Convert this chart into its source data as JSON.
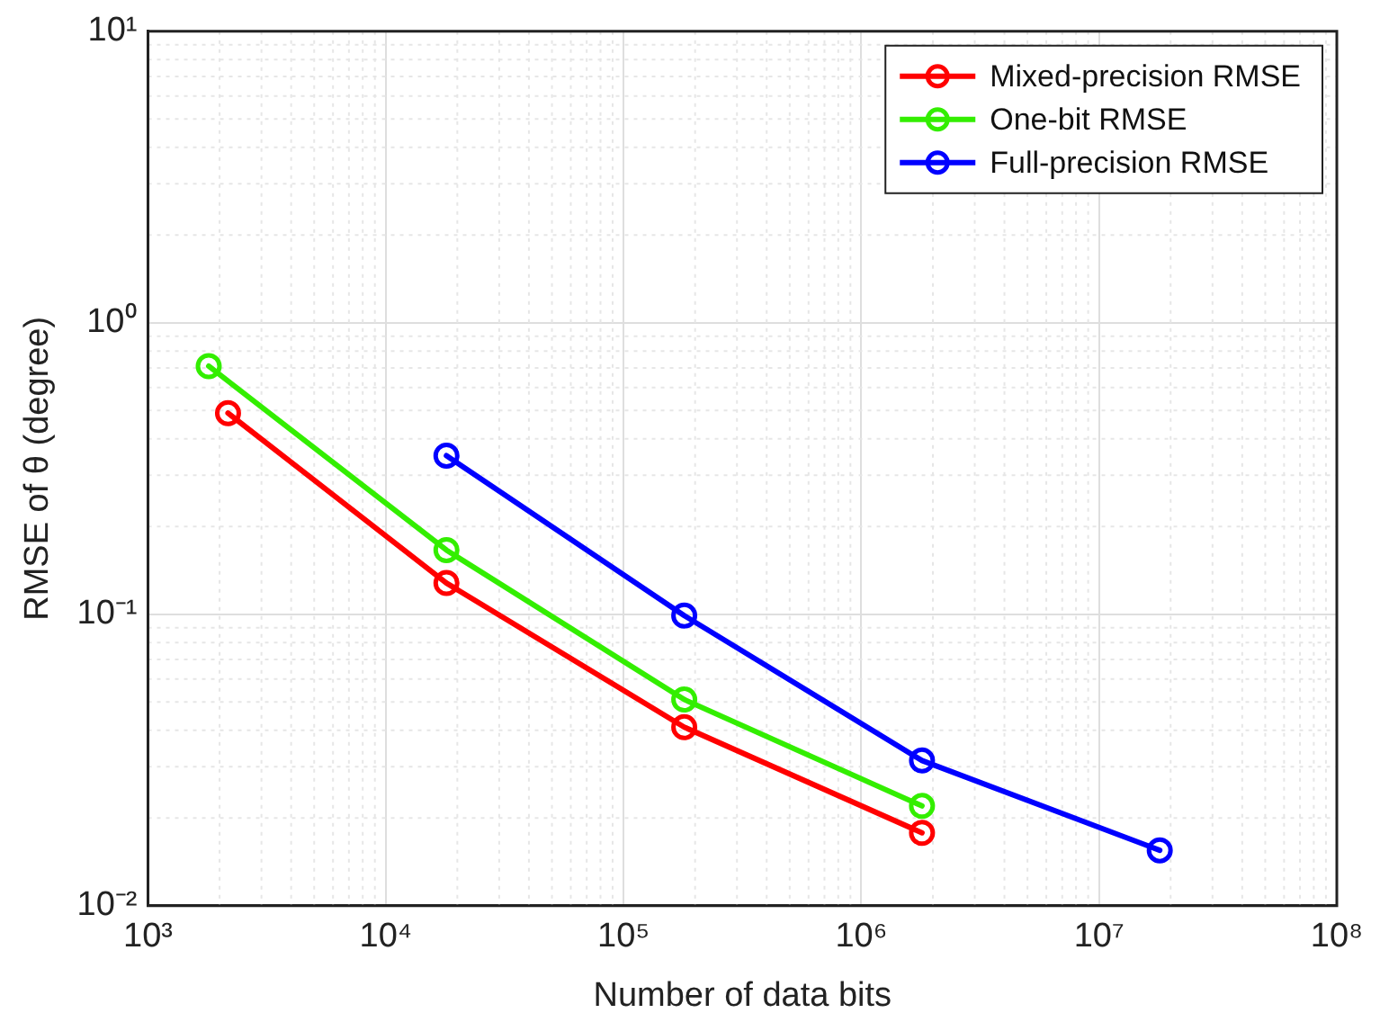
{
  "chart_data": {
    "type": "line",
    "xlabel": "Number of data bits",
    "ylabel": "RMSE of θ (degree)",
    "log": "xy",
    "grid": true,
    "legend": "top right",
    "marker": "circle",
    "line_style": "solid",
    "xlim": [
      1000,
      100000000
    ],
    "ylim": [
      0.01,
      10
    ],
    "xticks": [
      {
        "value": 1000,
        "label": "10³"
      },
      {
        "value": 10000,
        "label": "10⁴"
      },
      {
        "value": 100000,
        "label": "10⁵"
      },
      {
        "value": 1000000,
        "label": "10⁶"
      },
      {
        "value": 10000000,
        "label": "10⁷"
      },
      {
        "value": 100000000,
        "label": "10⁸"
      }
    ],
    "yticks": [
      {
        "value": 0.01,
        "label": "10⁻²"
      },
      {
        "value": 0.1,
        "label": "10⁻¹"
      },
      {
        "value": 1,
        "label": "10⁰"
      },
      {
        "value": 10,
        "label": "10¹"
      }
    ],
    "series": [
      {
        "name": "Mixed-precision RMSE",
        "color": "#ff0000",
        "x": [
          2170,
          18000,
          180000,
          1800000
        ],
        "values": [
          0.49,
          0.128,
          0.041,
          0.0178
        ]
      },
      {
        "name": "One-bit RMSE",
        "color": "#33ee00",
        "x": [
          1800,
          18000,
          180000,
          1800000
        ],
        "values": [
          0.71,
          0.166,
          0.051,
          0.022
        ]
      },
      {
        "name": "Full-precision RMSE",
        "color": "#0000ff",
        "x": [
          18000,
          180000,
          1800000,
          18000000
        ],
        "values": [
          0.35,
          0.099,
          0.0315,
          0.0155
        ]
      }
    ]
  }
}
